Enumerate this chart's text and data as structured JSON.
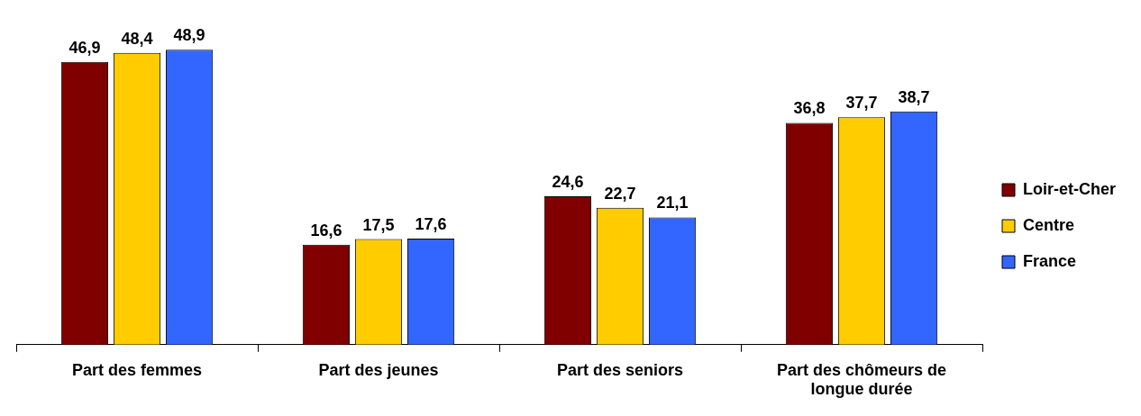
{
  "chart_data": {
    "type": "bar",
    "categories": [
      "Part des femmes",
      "Part des jeunes",
      "Part des seniors",
      "Part des chômeurs de longue durée"
    ],
    "series": [
      {
        "name": "Loir-et-Cher",
        "color": "#800000",
        "values": [
          46.9,
          16.6,
          24.6,
          36.8
        ],
        "value_labels": [
          "46,9",
          "16,6",
          "24,6",
          "36,8"
        ]
      },
      {
        "name": "Centre",
        "color": "#ffcc00",
        "values": [
          48.4,
          17.5,
          22.7,
          37.7
        ],
        "value_labels": [
          "48,4",
          "17,5",
          "22,7",
          "37,7"
        ]
      },
      {
        "name": "France",
        "color": "#3366ff",
        "values": [
          48.9,
          17.6,
          21.1,
          38.7
        ],
        "value_labels": [
          "48,9",
          "17,6",
          "21,1",
          "38,7"
        ]
      }
    ],
    "legend": "right",
    "grid": false
  }
}
